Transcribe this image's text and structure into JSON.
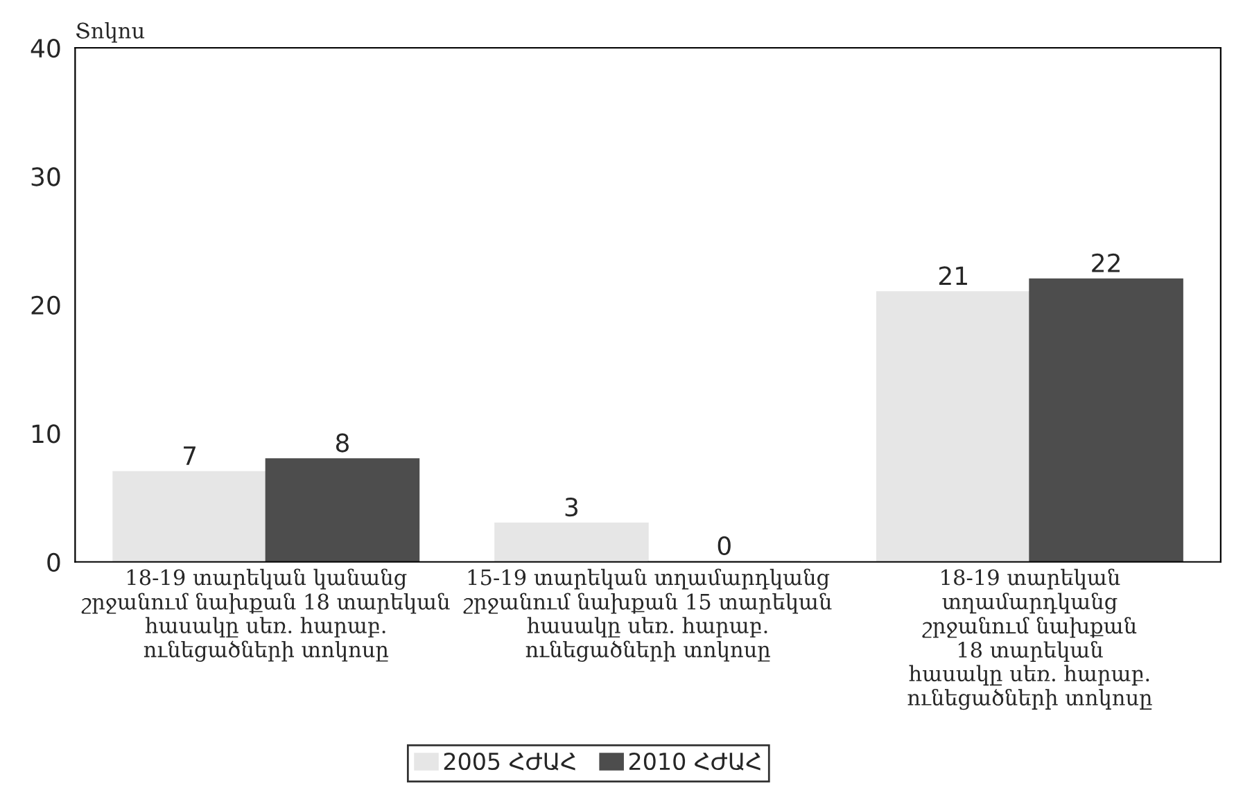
{
  "chart_data": {
    "type": "bar",
    "ylabel": "Տոկոս",
    "categories": [
      "18-19 տարեկան կանանց\nշրջանում նախքան 18 տարեկան\nհասակը սեռ. հարաբ.\nունեցածների տոկոսը",
      "15-19 տարեկան տղամարդկանց\nշրջանում նախքան 15 տարեկան\nհասակը սեռ. հարաբ.\nունեցածների տոկոսը",
      "18-19 տարեկան\nտղամարդկանց\nշրջանում նախքան\n18 տարեկան\nհասակը սեռ. հարաբ.\nունեցածների տոկոսը"
    ],
    "series": [
      {
        "name": "2005 ՀԺԱՀ",
        "color": "#e6e6e6",
        "values": [
          7,
          3,
          21
        ]
      },
      {
        "name": "2010 ՀԺԱՀ",
        "color": "#4d4d4d",
        "values": [
          8,
          0,
          22
        ]
      }
    ],
    "ylim": [
      0,
      40
    ],
    "yticks": [
      0,
      10,
      20,
      30,
      40
    ],
    "data_labels": true,
    "grid": false,
    "legend": "bottom"
  }
}
